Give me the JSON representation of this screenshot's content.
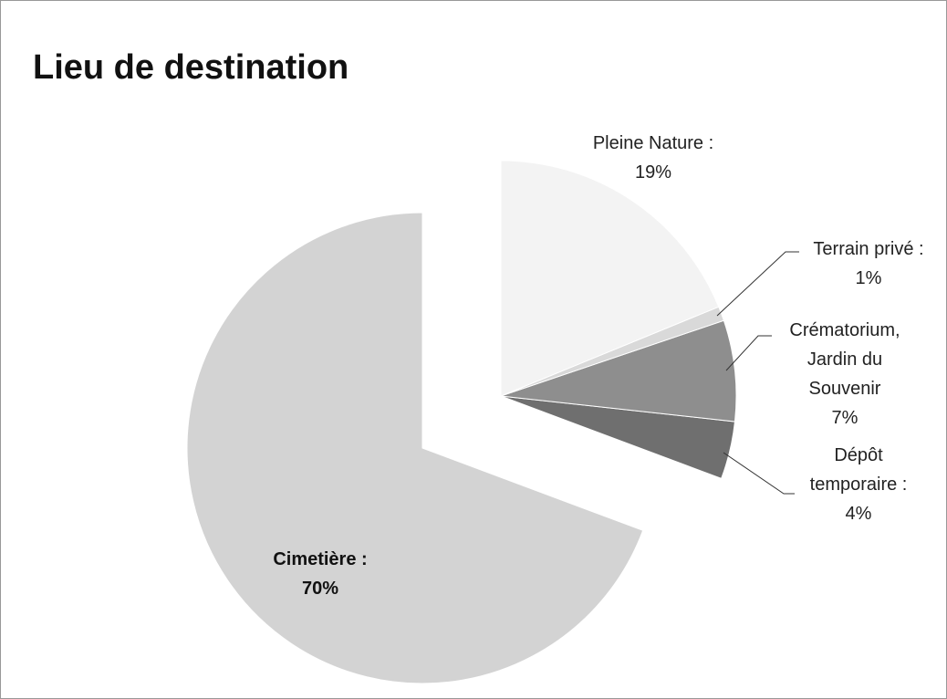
{
  "chart_data": {
    "type": "pie",
    "title": "Lieu de destination",
    "categories": [
      "Pleine Nature :",
      "Terrain privé :",
      "Crématorium, Jardin du Souvenir",
      "Dépôt temporaire :",
      "Cimetière :"
    ],
    "values": [
      19,
      1,
      7,
      4,
      70
    ],
    "value_labels": [
      "19%",
      "1%",
      "7%",
      "4%",
      "70%"
    ],
    "colors": [
      "#f3f3f3",
      "#d9d9d9",
      "#8e8e8e",
      "#6f6f6f",
      "#d3d3d3"
    ]
  }
}
